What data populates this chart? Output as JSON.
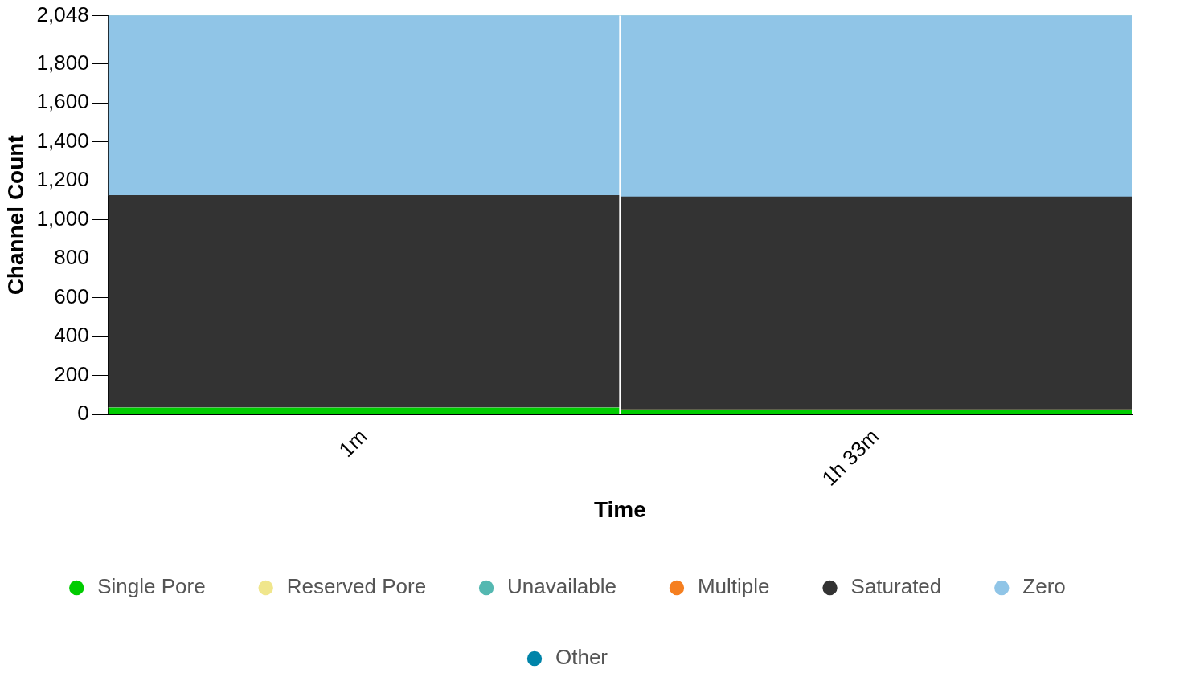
{
  "chart_data": {
    "type": "bar",
    "stacked": true,
    "xlabel": "Time",
    "ylabel": "Channel Count",
    "categories": [
      "1m",
      "1h 33m"
    ],
    "series": [
      {
        "name": "Single Pore",
        "color": "#00cc00",
        "values": [
          33,
          22
        ]
      },
      {
        "name": "Reserved Pore",
        "color": "#f0e68c",
        "values": [
          0,
          0
        ]
      },
      {
        "name": "Unavailable",
        "color": "#54b8b1",
        "values": [
          2,
          2
        ]
      },
      {
        "name": "Multiple",
        "color": "#f57f20",
        "values": [
          0,
          0
        ]
      },
      {
        "name": "Saturated",
        "color": "#333333",
        "values": [
          1090,
          1094
        ]
      },
      {
        "name": "Zero",
        "color": "#90c5e7",
        "values": [
          923,
          930
        ]
      },
      {
        "name": "Other",
        "color": "#0084a9",
        "values": [
          0,
          0
        ]
      }
    ],
    "ylim": [
      0,
      2048
    ],
    "yticks": [
      {
        "value": 0,
        "label": "0"
      },
      {
        "value": 200,
        "label": "200"
      },
      {
        "value": 400,
        "label": "400"
      },
      {
        "value": 600,
        "label": "600"
      },
      {
        "value": 800,
        "label": "800"
      },
      {
        "value": 1000,
        "label": "1,000"
      },
      {
        "value": 1200,
        "label": "1,200"
      },
      {
        "value": 1400,
        "label": "1,400"
      },
      {
        "value": 1600,
        "label": "1,600"
      },
      {
        "value": 1800,
        "label": "1,800"
      },
      {
        "value": 2048,
        "label": "2,048"
      }
    ],
    "grid": false,
    "legend": "bottom"
  }
}
